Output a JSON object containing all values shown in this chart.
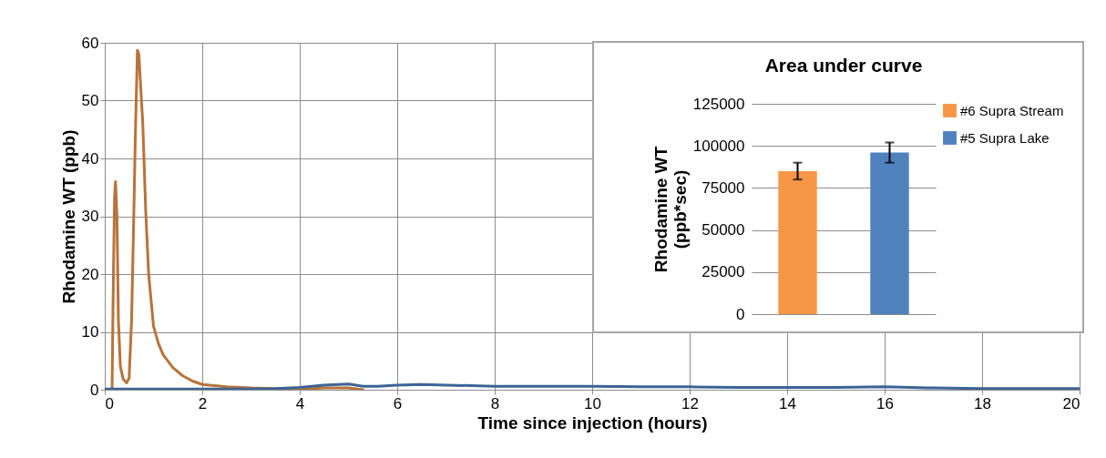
{
  "chart_data": [
    {
      "type": "line",
      "xlabel": "Time since injection (hours)",
      "ylabel": "Rhodamine WT (ppb)",
      "xlim": [
        0,
        20
      ],
      "xticks": [
        0,
        2,
        4,
        6,
        8,
        10,
        12,
        14,
        16,
        18,
        20
      ],
      "ylim": [
        0,
        60
      ],
      "yticks": [
        0,
        10,
        20,
        30,
        40,
        50,
        60
      ],
      "grid": true,
      "legend": false,
      "series": [
        {
          "color": "#b8733a",
          "x": [
            0.15,
            0.17,
            0.2,
            0.22,
            0.25,
            0.28,
            0.32,
            0.38,
            0.45,
            0.5,
            0.55,
            0.6,
            0.63,
            0.67,
            0.7,
            0.74,
            0.78,
            0.84,
            0.9,
            1.0,
            1.1,
            1.2,
            1.4,
            1.6,
            1.8,
            2.0,
            2.5,
            3.0,
            3.5,
            4.0,
            4.5,
            5.0,
            5.3
          ],
          "values": [
            0,
            15,
            33,
            36,
            30,
            12,
            4,
            1.8,
            1.2,
            2,
            12,
            32,
            45,
            58.7,
            58,
            52,
            46,
            31,
            20,
            11,
            8,
            6,
            3.8,
            2.4,
            1.5,
            0.9,
            0.5,
            0.3,
            0.2,
            0.1,
            0.3,
            0.3,
            0
          ]
        },
        {
          "color": "#3c6496",
          "x": [
            0,
            1,
            2,
            3,
            3.5,
            4,
            4.5,
            4.8,
            5,
            5.3,
            5.6,
            6,
            6.5,
            7,
            8,
            9,
            10,
            11,
            12,
            13,
            14,
            15,
            16,
            17,
            18,
            19,
            20
          ],
          "values": [
            0.1,
            0.1,
            0.1,
            0.1,
            0.2,
            0.4,
            0.8,
            0.9,
            1.0,
            0.6,
            0.6,
            0.8,
            0.9,
            0.8,
            0.6,
            0.6,
            0.6,
            0.5,
            0.5,
            0.4,
            0.4,
            0.4,
            0.5,
            0.3,
            0.2,
            0.2,
            0.2
          ]
        }
      ]
    },
    {
      "type": "bar",
      "title": "Area under curve",
      "ylabel": "Rhodamine WT (ppb*sec)",
      "categories": [
        null
      ],
      "ylim": [
        0,
        125000
      ],
      "yticks": [
        0,
        25000,
        50000,
        75000,
        100000,
        125000
      ],
      "grid": "y",
      "legend": "right",
      "series": [
        {
          "name": "#6 Supra Stream",
          "color": "#f79646",
          "values": [
            85000
          ],
          "errors": [
            5000
          ]
        },
        {
          "name": "#5 Supra Lake",
          "color": "#4f81bd",
          "values": [
            96000
          ],
          "errors": [
            6000
          ]
        }
      ]
    }
  ]
}
